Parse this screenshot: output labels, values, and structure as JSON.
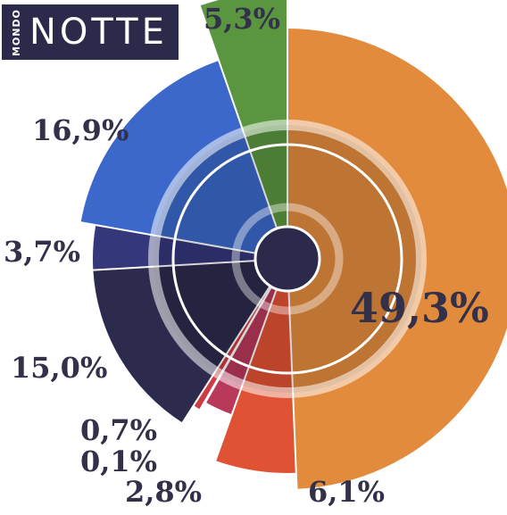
{
  "logo": {
    "small": "MONDO",
    "big": "NOTTE"
  },
  "chart_data": {
    "type": "pie",
    "title": "",
    "categories": [
      "49,3%",
      "6,1%",
      "2,8%",
      "0,1%",
      "0,7%",
      "15,0%",
      "3,7%",
      "16,9%",
      "5,3%"
    ],
    "values": [
      49.3,
      6.1,
      2.8,
      0.1,
      0.7,
      15.0,
      3.7,
      16.9,
      5.3
    ],
    "colors": [
      "#e38b3c",
      "#e05234",
      "#b8395a",
      "#3b2f5c",
      "#cc3c44",
      "#2c2a4d",
      "#34377a",
      "#3b68ca",
      "#5a9640"
    ],
    "radii": [
      258,
      240,
      185,
      168,
      195,
      218,
      218,
      235,
      300
    ],
    "legend": "none"
  }
}
